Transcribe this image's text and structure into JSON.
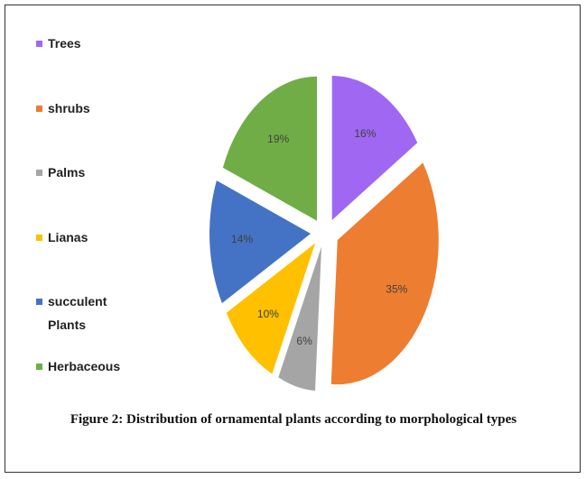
{
  "chart_data": {
    "type": "pie",
    "title": "Figure 2: Distribution of ornamental plants according to morphological types",
    "categories": [
      "Trees",
      "shrubs",
      "Palms",
      "Lianas",
      "succulent Plants",
      "Herbaceous"
    ],
    "values": [
      16,
      35,
      6,
      10,
      14,
      19
    ],
    "value_labels": [
      "16%",
      "35%",
      "6%",
      "10%",
      "14%",
      "19%"
    ],
    "colors": [
      "#9f67f2",
      "#ed7d31",
      "#a5a5a5",
      "#ffc000",
      "#4472c4",
      "#70ad47"
    ]
  }
}
